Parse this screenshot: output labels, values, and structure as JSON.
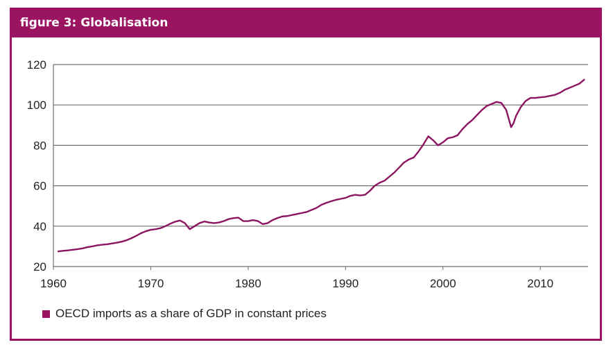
{
  "figure": {
    "title": "figure 3: Globalisation"
  },
  "colors": {
    "brand": "#9a1461",
    "series": "#8b1560",
    "grid": "#6d6d6d",
    "text": "#222222"
  },
  "chart_data": {
    "type": "line",
    "title": "figure 3: Globalisation",
    "xlabel": "",
    "ylabel": "",
    "xlim": [
      1960,
      2014.9
    ],
    "ylim": [
      20,
      120
    ],
    "xticks": [
      1960,
      1970,
      1980,
      1990,
      2000,
      2010
    ],
    "yticks": [
      20,
      40,
      60,
      80,
      100,
      120
    ],
    "grid": "horizontal",
    "legend_position": "bottom-left",
    "series": [
      {
        "name": "OECD imports as a share of GDP in constant prices",
        "x": [
          1960.5,
          1961,
          1961.5,
          1962,
          1962.5,
          1963,
          1963.5,
          1964,
          1964.5,
          1965,
          1965.5,
          1966,
          1966.5,
          1967,
          1967.5,
          1968,
          1968.5,
          1969,
          1969.5,
          1970,
          1970.5,
          1971,
          1971.5,
          1972,
          1972.5,
          1973,
          1973.5,
          1974,
          1974.5,
          1975,
          1975.5,
          1976,
          1976.5,
          1977,
          1977.5,
          1978,
          1978.5,
          1979,
          1979.5,
          1980,
          1980.5,
          1981,
          1981.5,
          1982,
          1982.5,
          1983,
          1983.5,
          1984,
          1984.5,
          1985,
          1985.5,
          1986,
          1986.5,
          1987,
          1987.5,
          1988,
          1988.5,
          1989,
          1989.5,
          1990,
          1990.5,
          1991,
          1991.5,
          1992,
          1992.5,
          1993,
          1993.5,
          1994,
          1994.5,
          1995,
          1995.5,
          1996,
          1996.5,
          1997,
          1997.5,
          1998,
          1998.5,
          1999,
          1999.5,
          2000,
          2000.5,
          2001,
          2001.5,
          2002,
          2002.5,
          2003,
          2003.5,
          2004,
          2004.5,
          2005,
          2005.5,
          2006,
          2006.5,
          2007,
          2007.25,
          2007.5,
          2008,
          2008.5,
          2009,
          2009.5,
          2010,
          2010.5,
          2011,
          2011.5,
          2012,
          2012.5,
          2013,
          2013.5,
          2014,
          2014.5
        ],
        "values": [
          27.5,
          27.8,
          28.0,
          28.3,
          28.6,
          29.0,
          29.6,
          30.0,
          30.5,
          30.8,
          31.0,
          31.4,
          31.8,
          32.3,
          33.0,
          34.0,
          35.2,
          36.5,
          37.5,
          38.2,
          38.5,
          39.0,
          40.0,
          41.2,
          42.2,
          42.8,
          41.5,
          38.5,
          40.0,
          41.5,
          42.3,
          41.8,
          41.5,
          41.8,
          42.5,
          43.5,
          44.0,
          44.2,
          42.5,
          42.5,
          43.0,
          42.5,
          41.0,
          41.5,
          43.0,
          44.0,
          44.8,
          45.0,
          45.5,
          46.0,
          46.5,
          47.0,
          48.0,
          49.0,
          50.5,
          51.5,
          52.3,
          53.0,
          53.5,
          54.0,
          55.0,
          55.5,
          55.2,
          55.5,
          57.5,
          60.0,
          61.5,
          62.5,
          64.5,
          66.5,
          69.0,
          71.5,
          73.0,
          74.0,
          77.0,
          80.5,
          84.5,
          82.5,
          80.0,
          81.5,
          83.5,
          84.0,
          85.0,
          88.0,
          90.5,
          92.5,
          95.0,
          97.5,
          99.5,
          100.5,
          101.5,
          101.0,
          97.5,
          89.0,
          91.0,
          94.5,
          99.0,
          102.0,
          103.5,
          103.5,
          103.8,
          104.0,
          104.5,
          105.0,
          106.0,
          107.5,
          108.5,
          109.5,
          110.5,
          112.5
        ]
      }
    ]
  }
}
